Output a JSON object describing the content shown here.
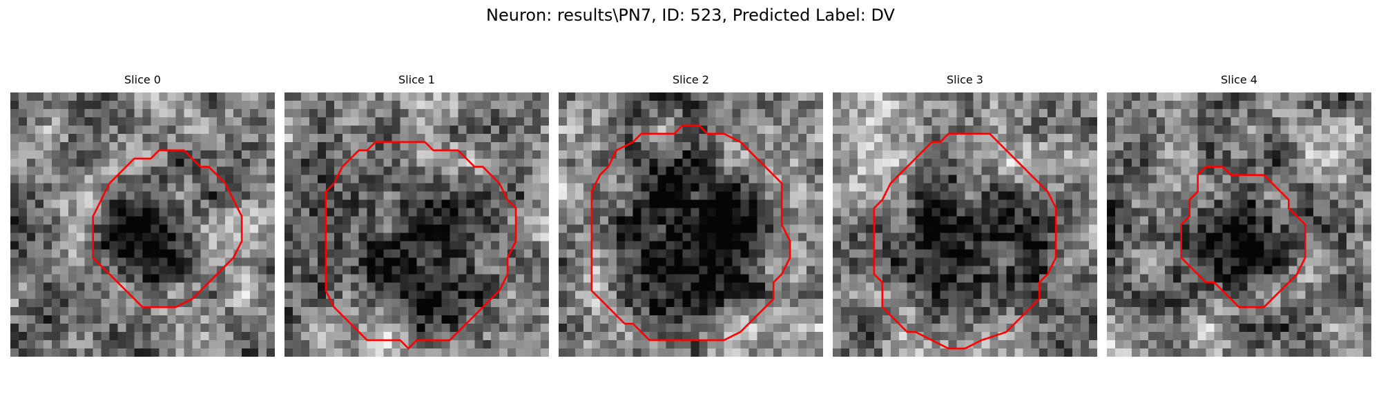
{
  "figure": {
    "title": "Neuron: results\\PN7, ID: 523, Predicted Label: DV",
    "contour_color": "#ff0000",
    "colormap": "gray"
  },
  "panels": [
    {
      "title": "Slice 0",
      "contour": [
        [
          19,
          7
        ],
        [
          21,
          7
        ],
        [
          22,
          8
        ],
        [
          23,
          9
        ],
        [
          24,
          9
        ],
        [
          25,
          10
        ],
        [
          26,
          11
        ],
        [
          27,
          13
        ],
        [
          28,
          15
        ],
        [
          28,
          18
        ],
        [
          27,
          20
        ],
        [
          26,
          21
        ],
        [
          25,
          22
        ],
        [
          24,
          23
        ],
        [
          23,
          24
        ],
        [
          22,
          25
        ],
        [
          20,
          26
        ],
        [
          17,
          26
        ],
        [
          16,
          26
        ],
        [
          15,
          25
        ],
        [
          14,
          24
        ],
        [
          13,
          23
        ],
        [
          12,
          22
        ],
        [
          11,
          21
        ],
        [
          10,
          20
        ],
        [
          10,
          19
        ],
        [
          10,
          17
        ],
        [
          10,
          15
        ],
        [
          11,
          13
        ],
        [
          12,
          11
        ],
        [
          13,
          10
        ],
        [
          14,
          9
        ],
        [
          15,
          8
        ],
        [
          16,
          8
        ],
        [
          17,
          8
        ],
        [
          18,
          7
        ]
      ]
    },
    {
      "title": "Slice 1",
      "contour": [
        [
          13,
          6
        ],
        [
          17,
          6
        ],
        [
          18,
          7
        ],
        [
          21,
          7
        ],
        [
          22,
          8
        ],
        [
          23,
          9
        ],
        [
          24,
          9
        ],
        [
          25,
          10
        ],
        [
          26,
          11
        ],
        [
          27,
          13
        ],
        [
          28,
          14
        ],
        [
          28,
          16
        ],
        [
          28,
          18
        ],
        [
          27,
          20
        ],
        [
          27,
          22
        ],
        [
          26,
          24
        ],
        [
          25,
          25
        ],
        [
          24,
          26
        ],
        [
          23,
          27
        ],
        [
          22,
          28
        ],
        [
          21,
          29
        ],
        [
          20,
          30
        ],
        [
          16,
          30
        ],
        [
          15,
          31
        ],
        [
          14,
          30
        ],
        [
          11,
          30
        ],
        [
          10,
          30
        ],
        [
          9,
          29
        ],
        [
          8,
          28
        ],
        [
          7,
          27
        ],
        [
          6,
          26
        ],
        [
          5,
          24
        ],
        [
          5,
          20
        ],
        [
          5,
          16
        ],
        [
          5,
          12
        ],
        [
          6,
          11
        ],
        [
          7,
          9
        ],
        [
          8,
          8
        ],
        [
          9,
          7
        ],
        [
          10,
          7
        ],
        [
          11,
          6
        ],
        [
          12,
          6
        ]
      ]
    },
    {
      "title": "Slice 2",
      "contour": [
        [
          10,
          5
        ],
        [
          12,
          5
        ],
        [
          14,
          5
        ],
        [
          15,
          4
        ],
        [
          17,
          4
        ],
        [
          18,
          5
        ],
        [
          20,
          5
        ],
        [
          22,
          6
        ],
        [
          23,
          7
        ],
        [
          24,
          8
        ],
        [
          25,
          9
        ],
        [
          26,
          10
        ],
        [
          27,
          11
        ],
        [
          27,
          13
        ],
        [
          27,
          16
        ],
        [
          28,
          18
        ],
        [
          28,
          20
        ],
        [
          27,
          22
        ],
        [
          26,
          23
        ],
        [
          26,
          25
        ],
        [
          25,
          26
        ],
        [
          24,
          27
        ],
        [
          23,
          28
        ],
        [
          22,
          29
        ],
        [
          20,
          30
        ],
        [
          18,
          30
        ],
        [
          15,
          30
        ],
        [
          13,
          30
        ],
        [
          11,
          30
        ],
        [
          10,
          29
        ],
        [
          9,
          28
        ],
        [
          8,
          28
        ],
        [
          7,
          27
        ],
        [
          6,
          26
        ],
        [
          5,
          25
        ],
        [
          4,
          24
        ],
        [
          4,
          22
        ],
        [
          4,
          19
        ],
        [
          4,
          15
        ],
        [
          4,
          12
        ],
        [
          5,
          10
        ],
        [
          6,
          9
        ],
        [
          7,
          7
        ],
        [
          9,
          6
        ]
      ]
    },
    {
      "title": "Slice 3",
      "contour": [
        [
          14,
          5
        ],
        [
          16,
          5
        ],
        [
          19,
          5
        ],
        [
          20,
          6
        ],
        [
          21,
          7
        ],
        [
          22,
          8
        ],
        [
          23,
          9
        ],
        [
          24,
          10
        ],
        [
          25,
          11
        ],
        [
          26,
          12
        ],
        [
          27,
          14
        ],
        [
          27,
          17
        ],
        [
          27,
          20
        ],
        [
          26,
          22
        ],
        [
          25,
          23
        ],
        [
          25,
          25
        ],
        [
          24,
          26
        ],
        [
          23,
          27
        ],
        [
          22,
          28
        ],
        [
          21,
          29
        ],
        [
          18,
          30
        ],
        [
          16,
          31
        ],
        [
          14,
          31
        ],
        [
          12,
          30
        ],
        [
          10,
          29
        ],
        [
          9,
          29
        ],
        [
          8,
          28
        ],
        [
          7,
          27
        ],
        [
          6,
          26
        ],
        [
          6,
          25
        ],
        [
          6,
          23
        ],
        [
          5,
          22
        ],
        [
          5,
          20
        ],
        [
          5,
          17
        ],
        [
          5,
          14
        ],
        [
          6,
          13
        ],
        [
          7,
          11
        ],
        [
          8,
          10
        ],
        [
          9,
          9
        ],
        [
          10,
          8
        ],
        [
          11,
          7
        ],
        [
          12,
          6
        ],
        [
          13,
          6
        ]
      ]
    },
    {
      "title": "Slice 4",
      "contour": [
        [
          12,
          9
        ],
        [
          14,
          9
        ],
        [
          15,
          10
        ],
        [
          18,
          10
        ],
        [
          19,
          10
        ],
        [
          20,
          11
        ],
        [
          21,
          12
        ],
        [
          22,
          13
        ],
        [
          22,
          14
        ],
        [
          23,
          15
        ],
        [
          24,
          16
        ],
        [
          24,
          18
        ],
        [
          24,
          20
        ],
        [
          23,
          22
        ],
        [
          22,
          23
        ],
        [
          21,
          24
        ],
        [
          20,
          25
        ],
        [
          19,
          26
        ],
        [
          17,
          26
        ],
        [
          16,
          26
        ],
        [
          15,
          25
        ],
        [
          14,
          24
        ],
        [
          13,
          23
        ],
        [
          12,
          23
        ],
        [
          11,
          22
        ],
        [
          10,
          21
        ],
        [
          9,
          20
        ],
        [
          9,
          18
        ],
        [
          9,
          16
        ],
        [
          10,
          15
        ],
        [
          10,
          13
        ],
        [
          11,
          12
        ],
        [
          11,
          10
        ]
      ]
    }
  ]
}
